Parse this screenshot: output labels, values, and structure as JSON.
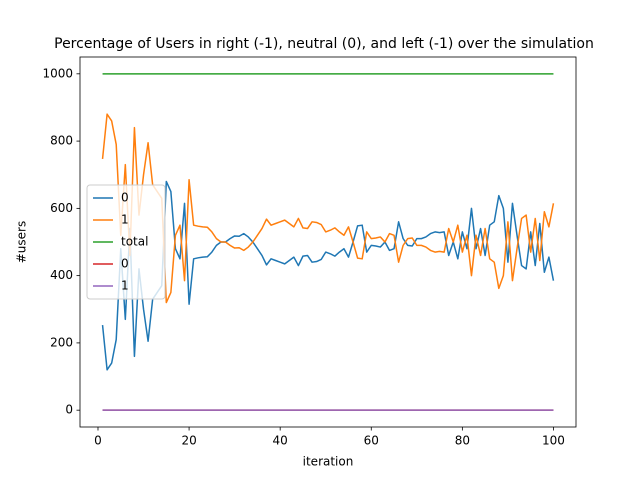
{
  "chart_data": {
    "type": "line",
    "title": "Percentage of Users in right (-1), neutral (0), and left (-1) over the simulation",
    "xlabel": "iteration",
    "ylabel": "#users",
    "x": [
      1,
      2,
      3,
      4,
      5,
      6,
      7,
      8,
      9,
      10,
      11,
      12,
      13,
      14,
      15,
      16,
      17,
      18,
      19,
      20,
      21,
      22,
      23,
      24,
      25,
      26,
      27,
      28,
      29,
      30,
      31,
      32,
      33,
      34,
      35,
      36,
      37,
      38,
      39,
      40,
      41,
      42,
      43,
      44,
      45,
      46,
      47,
      48,
      49,
      50,
      51,
      52,
      53,
      54,
      55,
      56,
      57,
      58,
      59,
      60,
      61,
      62,
      63,
      64,
      65,
      66,
      67,
      68,
      69,
      70,
      71,
      72,
      73,
      74,
      75,
      76,
      77,
      78,
      79,
      80,
      81,
      82,
      83,
      84,
      85,
      86,
      87,
      88,
      89,
      90,
      91,
      92,
      93,
      94,
      95,
      96,
      97,
      98,
      99,
      100
    ],
    "series": [
      {
        "name": "0",
        "color": "#1f77b4",
        "values": [
          253,
          120,
          140,
          210,
          480,
          270,
          540,
          160,
          420,
          300,
          205,
          330,
          350,
          370,
          680,
          650,
          480,
          450,
          615,
          315,
          450,
          453,
          455,
          456,
          470,
          490,
          500,
          500,
          510,
          518,
          517,
          525,
          515,
          500,
          480,
          460,
          432,
          450,
          445,
          440,
          435,
          445,
          455,
          430,
          458,
          460,
          440,
          442,
          448,
          470,
          465,
          458,
          470,
          480,
          455,
          500,
          548,
          550,
          470,
          490,
          488,
          485,
          500,
          475,
          480,
          560,
          510,
          490,
          488,
          510,
          510,
          515,
          525,
          530,
          528,
          530,
          460,
          500,
          450,
          530,
          480,
          600,
          480,
          540,
          460,
          550,
          560,
          638,
          600,
          440,
          615,
          520,
          430,
          420,
          530,
          430,
          555,
          410,
          455,
          385
        ]
      },
      {
        "name": "1",
        "color": "#ff7f0e",
        "values": [
          747,
          880,
          860,
          790,
          520,
          730,
          460,
          840,
          580,
          700,
          795,
          670,
          650,
          630,
          320,
          350,
          520,
          550,
          385,
          685,
          550,
          547,
          545,
          544,
          530,
          510,
          500,
          500,
          490,
          482,
          483,
          475,
          485,
          500,
          520,
          540,
          568,
          550,
          555,
          560,
          565,
          555,
          545,
          570,
          542,
          540,
          560,
          558,
          552,
          530,
          535,
          542,
          530,
          520,
          545,
          500,
          452,
          450,
          530,
          510,
          512,
          515,
          500,
          525,
          520,
          440,
          490,
          510,
          512,
          490,
          490,
          485,
          475,
          470,
          472,
          470,
          540,
          500,
          550,
          470,
          520,
          400,
          520,
          460,
          540,
          450,
          440,
          362,
          400,
          560,
          385,
          480,
          570,
          580,
          470,
          570,
          445,
          590,
          545,
          615
        ]
      },
      {
        "name": "total",
        "color": "#2ca02c",
        "values": [
          1000,
          1000,
          1000,
          1000,
          1000,
          1000,
          1000,
          1000,
          1000,
          1000,
          1000,
          1000,
          1000,
          1000,
          1000,
          1000,
          1000,
          1000,
          1000,
          1000,
          1000,
          1000,
          1000,
          1000,
          1000,
          1000,
          1000,
          1000,
          1000,
          1000,
          1000,
          1000,
          1000,
          1000,
          1000,
          1000,
          1000,
          1000,
          1000,
          1000,
          1000,
          1000,
          1000,
          1000,
          1000,
          1000,
          1000,
          1000,
          1000,
          1000,
          1000,
          1000,
          1000,
          1000,
          1000,
          1000,
          1000,
          1000,
          1000,
          1000,
          1000,
          1000,
          1000,
          1000,
          1000,
          1000,
          1000,
          1000,
          1000,
          1000,
          1000,
          1000,
          1000,
          1000,
          1000,
          1000,
          1000,
          1000,
          1000,
          1000,
          1000,
          1000,
          1000,
          1000,
          1000,
          1000,
          1000,
          1000,
          1000,
          1000,
          1000,
          1000,
          1000,
          1000,
          1000,
          1000,
          1000,
          1000,
          1000,
          1000
        ]
      },
      {
        "name": "0",
        "color": "#d62728",
        "values": [
          0,
          0,
          0,
          0,
          0,
          0,
          0,
          0,
          0,
          0,
          0,
          0,
          0,
          0,
          0,
          0,
          0,
          0,
          0,
          0,
          0,
          0,
          0,
          0,
          0,
          0,
          0,
          0,
          0,
          0,
          0,
          0,
          0,
          0,
          0,
          0,
          0,
          0,
          0,
          0,
          0,
          0,
          0,
          0,
          0,
          0,
          0,
          0,
          0,
          0,
          0,
          0,
          0,
          0,
          0,
          0,
          0,
          0,
          0,
          0,
          0,
          0,
          0,
          0,
          0,
          0,
          0,
          0,
          0,
          0,
          0,
          0,
          0,
          0,
          0,
          0,
          0,
          0,
          0,
          0,
          0,
          0,
          0,
          0,
          0,
          0,
          0,
          0,
          0,
          0,
          0,
          0,
          0,
          0,
          0,
          0,
          0,
          0,
          0,
          0
        ]
      },
      {
        "name": "1",
        "color": "#9467bd",
        "values": [
          0,
          0,
          0,
          0,
          0,
          0,
          0,
          0,
          0,
          0,
          0,
          0,
          0,
          0,
          0,
          0,
          0,
          0,
          0,
          0,
          0,
          0,
          0,
          0,
          0,
          0,
          0,
          0,
          0,
          0,
          0,
          0,
          0,
          0,
          0,
          0,
          0,
          0,
          0,
          0,
          0,
          0,
          0,
          0,
          0,
          0,
          0,
          0,
          0,
          0,
          0,
          0,
          0,
          0,
          0,
          0,
          0,
          0,
          0,
          0,
          0,
          0,
          0,
          0,
          0,
          0,
          0,
          0,
          0,
          0,
          0,
          0,
          0,
          0,
          0,
          0,
          0,
          0,
          0,
          0,
          0,
          0,
          0,
          0,
          0,
          0,
          0,
          0,
          0,
          0,
          0,
          0,
          0,
          0,
          0,
          0,
          0,
          0,
          0,
          0
        ]
      }
    ],
    "xlim": [
      -3.95,
      104.95
    ],
    "xticks": [
      0,
      20,
      40,
      60,
      80,
      100
    ],
    "ylim": [
      -50,
      1050
    ],
    "yticks": [
      0,
      200,
      400,
      600,
      800,
      1000
    ],
    "legend": "center left",
    "grid": false
  }
}
